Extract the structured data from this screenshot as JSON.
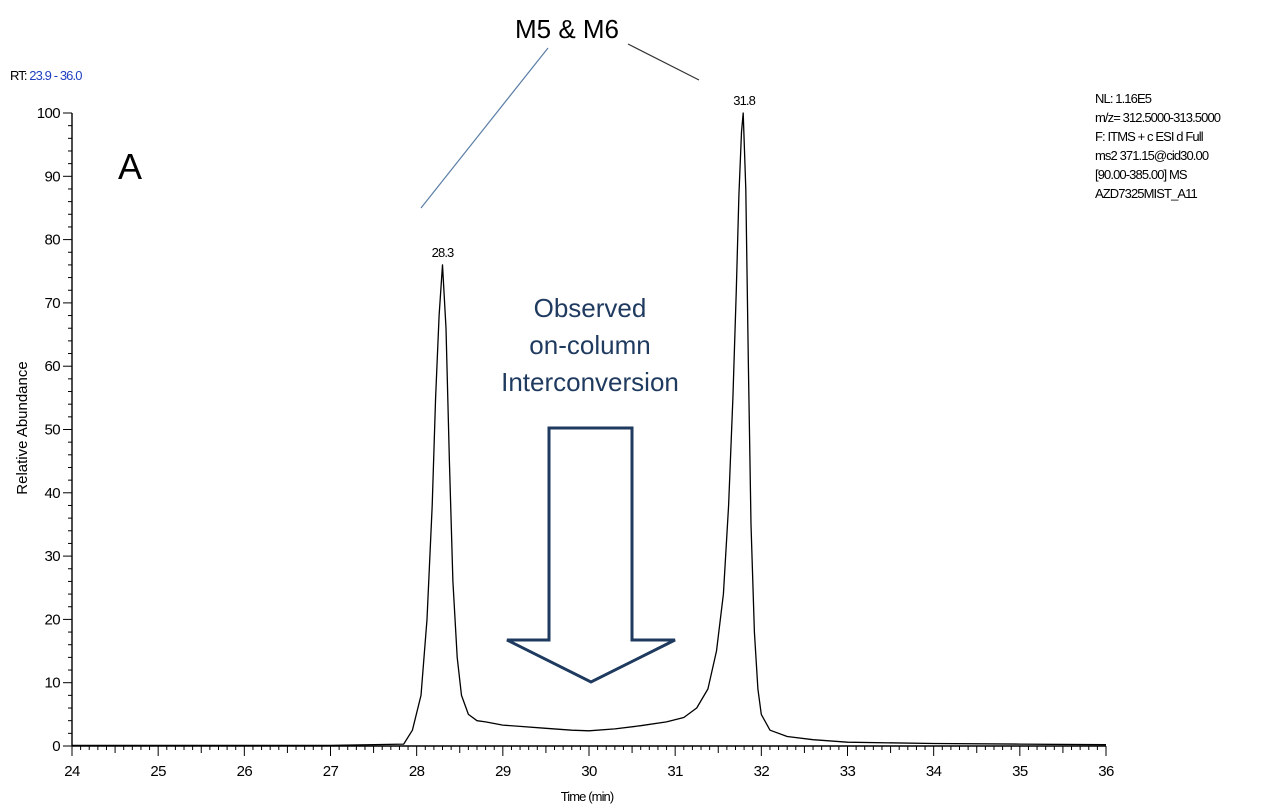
{
  "chart_data": {
    "type": "line",
    "title": "M5 & M6",
    "panel_label": "A",
    "rt_label": "RT:",
    "rt_range": "23.9 - 36.0",
    "xlabel": "Time (min)",
    "ylabel": "Relative Abundance",
    "xlim": [
      24,
      36
    ],
    "ylim": [
      0,
      100
    ],
    "x_ticks": [
      "24",
      "25",
      "26",
      "27",
      "28",
      "29",
      "30",
      "31",
      "32",
      "33",
      "34",
      "35",
      "36"
    ],
    "y_ticks": [
      "0",
      "10",
      "20",
      "30",
      "40",
      "50",
      "60",
      "70",
      "80",
      "90",
      "100"
    ],
    "info_lines": [
      "NL: 1.16E5",
      "m/z= 312.5000-313.5000",
      "F: ITMS + c ESI d Full",
      "ms2 371.15@cid30.00",
      "[90.00-385.00] MS",
      "AZD7325MIST_A11"
    ],
    "annotation": [
      "Observed",
      "on-column",
      "Interconversion"
    ],
    "peak_labels": [
      {
        "x": 28.3,
        "y": 76,
        "text": "28.3"
      },
      {
        "x": 31.8,
        "y": 100,
        "text": "31.8"
      }
    ],
    "series": [
      {
        "x": [
          24.0,
          27.0,
          27.85,
          27.95,
          28.05,
          28.12,
          28.18,
          28.22,
          28.26,
          28.3,
          28.34,
          28.38,
          28.42,
          28.47,
          28.52,
          28.6,
          28.7,
          28.8,
          29.0,
          29.2,
          29.5,
          29.8,
          30.0,
          30.3,
          30.6,
          30.9,
          31.1,
          31.25,
          31.38,
          31.48,
          31.56,
          31.62,
          31.67,
          31.71,
          31.74,
          31.77,
          31.79,
          31.82,
          31.85,
          31.88,
          31.92,
          31.96,
          32.0,
          32.1,
          32.3,
          32.6,
          33.0,
          34.0,
          35.0,
          36.0
        ],
        "y": [
          0.1,
          0.1,
          0.3,
          2.5,
          8,
          20,
          38,
          55,
          68,
          76,
          66,
          45,
          26,
          14,
          8,
          5,
          4,
          3.8,
          3.3,
          3.1,
          2.8,
          2.5,
          2.4,
          2.7,
          3.2,
          3.8,
          4.5,
          6,
          9,
          15,
          24,
          38,
          55,
          72,
          87,
          97,
          100,
          88,
          60,
          35,
          18,
          9,
          5,
          2.5,
          1.5,
          1,
          0.6,
          0.4,
          0.3,
          0.2
        ]
      }
    ]
  }
}
